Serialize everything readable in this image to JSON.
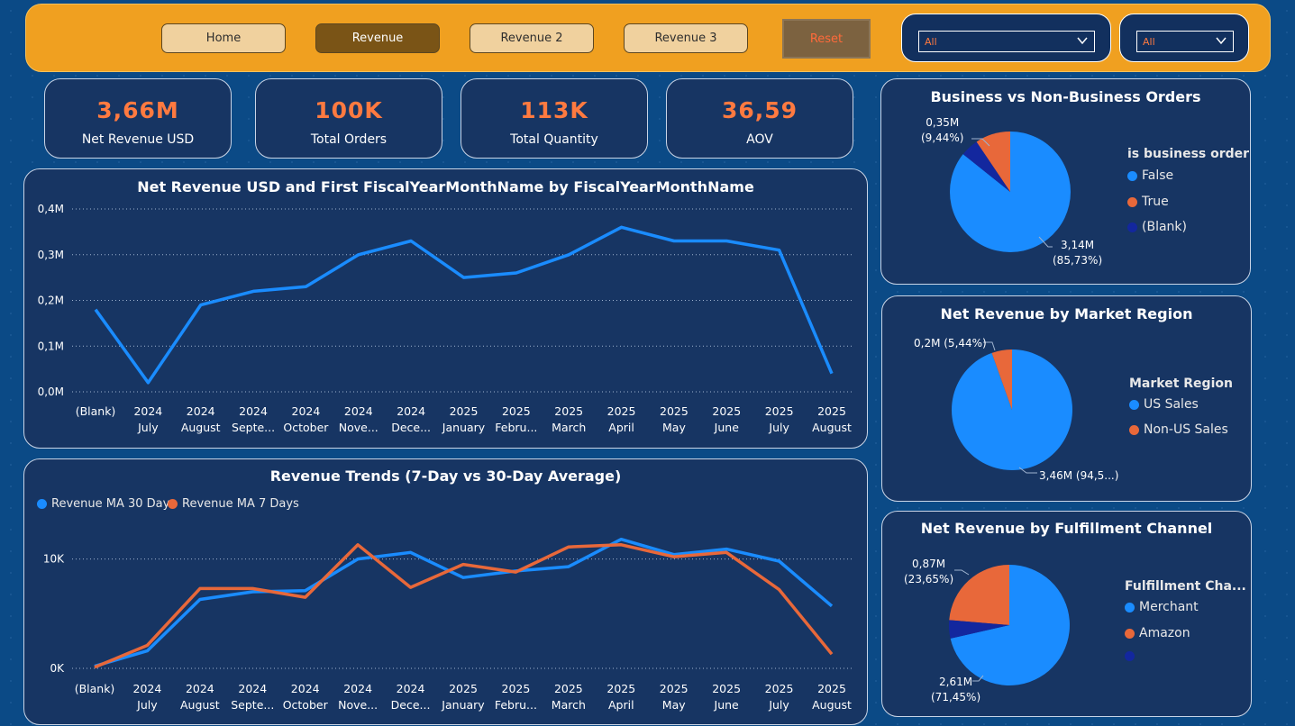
{
  "nav": {
    "home": "Home",
    "revenue": "Revenue",
    "revenue2": "Revenue 2",
    "revenue3": "Revenue 3",
    "reset": "Reset"
  },
  "slicers": [
    {
      "value": "All"
    },
    {
      "value": "All"
    }
  ],
  "kpis": [
    {
      "value": "3,66M",
      "label": "Net Revenue USD"
    },
    {
      "value": "100K",
      "label": "Total Orders"
    },
    {
      "value": "113K",
      "label": "Total Quantity"
    },
    {
      "value": "36,59",
      "label": "AOV"
    }
  ],
  "colors": {
    "accent_orange": "#f0a020",
    "kpi_value": "#ff7a40",
    "series_blue": "#1a8cff",
    "series_orange": "#e8683a",
    "blank_navy": "#13279e",
    "card_bg": "#173563"
  },
  "chart_data": [
    {
      "type": "line",
      "title": "Net Revenue USD and First FiscalYearMonthName by FiscalYearMonthName",
      "categories": [
        [
          "(Blank)",
          ""
        ],
        [
          "2024",
          "July"
        ],
        [
          "2024",
          "August"
        ],
        [
          "2024",
          "Septe..."
        ],
        [
          "2024",
          "October"
        ],
        [
          "2024",
          "Nove..."
        ],
        [
          "2024",
          "Dece..."
        ],
        [
          "2025",
          "January"
        ],
        [
          "2025",
          "Febru..."
        ],
        [
          "2025",
          "March"
        ],
        [
          "2025",
          "April"
        ],
        [
          "2025",
          "May"
        ],
        [
          "2025",
          "June"
        ],
        [
          "2025",
          "July"
        ],
        [
          "2025",
          "August"
        ]
      ],
      "series": [
        {
          "values": [
            0.18,
            0.02,
            0.19,
            0.22,
            0.23,
            0.3,
            0.33,
            0.25,
            0.26,
            0.3,
            0.36,
            0.33,
            0.33,
            0.31,
            0.04
          ],
          "color": "#1a8cff"
        }
      ],
      "yticks": [
        "0,4M",
        "0,3M",
        "0,2M",
        "0,1M",
        "0,0M"
      ],
      "ylim": [
        0,
        0.4
      ],
      "grid": true
    },
    {
      "type": "line",
      "title": "Revenue Trends (7-Day vs 30-Day Average)",
      "categories": [
        [
          "(Blank)",
          ""
        ],
        [
          "2024",
          "July"
        ],
        [
          "2024",
          "August"
        ],
        [
          "2024",
          "Septe..."
        ],
        [
          "2024",
          "October"
        ],
        [
          "2024",
          "Nove..."
        ],
        [
          "2024",
          "Dece..."
        ],
        [
          "2025",
          "January"
        ],
        [
          "2025",
          "Febru..."
        ],
        [
          "2025",
          "March"
        ],
        [
          "2025",
          "April"
        ],
        [
          "2025",
          "May"
        ],
        [
          "2025",
          "June"
        ],
        [
          "2025",
          "July"
        ],
        [
          "2025",
          "August"
        ]
      ],
      "series": [
        {
          "name": "Revenue MA 30 Days",
          "color": "#1a8cff",
          "values": [
            200,
            1600,
            6300,
            7000,
            7100,
            10000,
            10600,
            8300,
            8900,
            9300,
            11800,
            10400,
            10900,
            9800,
            5700
          ]
        },
        {
          "name": "Revenue MA 7 Days",
          "color": "#e8683a",
          "values": [
            100,
            2100,
            7300,
            7300,
            6500,
            11300,
            7400,
            9500,
            8800,
            11100,
            11300,
            10200,
            10600,
            7200,
            1300
          ]
        }
      ],
      "yticks": [
        "10K",
        "0K"
      ],
      "ylim": [
        0,
        14000
      ],
      "legend": "top-left",
      "grid": true
    },
    {
      "type": "pie",
      "title": "Business vs Non-Business Orders",
      "legend_title": "is business order",
      "slices": [
        {
          "label": "False",
          "value": 85.73,
          "color": "#1a8cff",
          "data_label": [
            "3,14M",
            "(85,73%)"
          ]
        },
        {
          "label": "True",
          "value": 9.44,
          "color": "#e8683a",
          "data_label": [
            "0,35M",
            "(9,44%)"
          ]
        },
        {
          "label": "(Blank)",
          "value": 4.83,
          "color": "#13279e",
          "data_label": []
        }
      ]
    },
    {
      "type": "pie",
      "title": "Net Revenue by Market Region",
      "legend_title": "Market Region",
      "slices": [
        {
          "label": "US Sales",
          "value": 94.56,
          "color": "#1a8cff",
          "data_label": [
            "3,46M (94,5...)"
          ]
        },
        {
          "label": "Non-US Sales",
          "value": 5.44,
          "color": "#e8683a",
          "data_label": [
            "0,2M (5,44%)"
          ]
        }
      ]
    },
    {
      "type": "pie",
      "title": "Net Revenue by Fulfillment Channel",
      "legend_title": "Fulfillment Cha...",
      "slices": [
        {
          "label": "Merchant",
          "value": 71.45,
          "color": "#1a8cff",
          "data_label": [
            "2,61M",
            "(71,45%)"
          ]
        },
        {
          "label": "Amazon",
          "value": 23.65,
          "color": "#e8683a",
          "data_label": [
            "0,87M",
            "(23,65%)"
          ]
        },
        {
          "label": "",
          "value": 4.9,
          "color": "#13279e",
          "data_label": []
        }
      ]
    }
  ]
}
